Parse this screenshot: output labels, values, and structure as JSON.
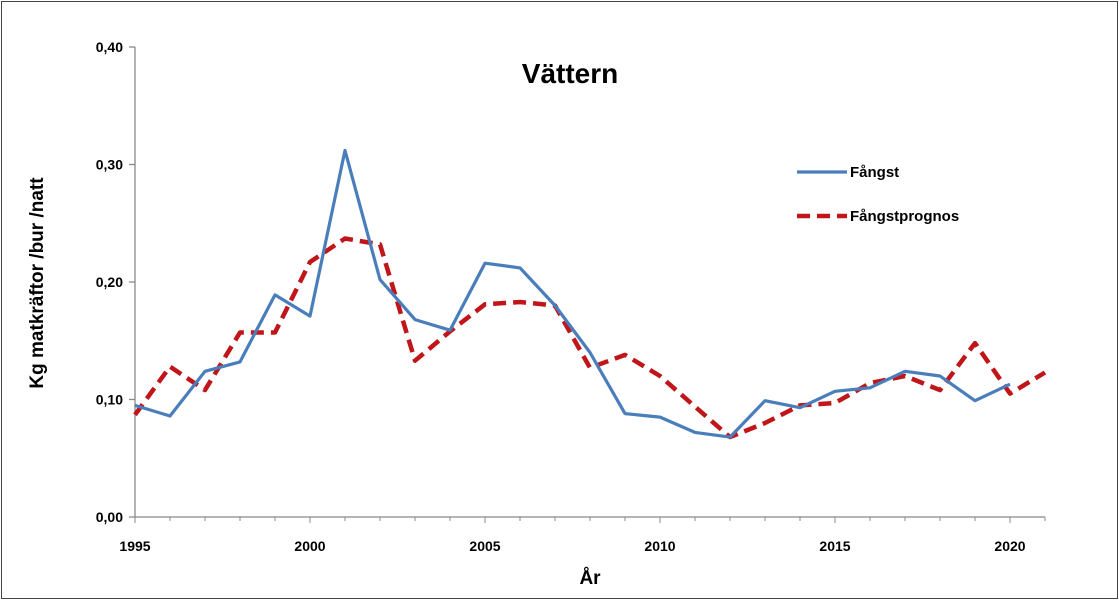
{
  "chart_data": {
    "type": "line",
    "title": "Vättern",
    "xlabel": "År",
    "ylabel": "Kg matkräftor /bur /natt",
    "xlim": [
      1995,
      2021
    ],
    "ylim": [
      0,
      0.4
    ],
    "x_ticks": [
      1995,
      2000,
      2005,
      2010,
      2015,
      2020
    ],
    "x_tick_labels": [
      "1995",
      "2000",
      "2005",
      "2010",
      "2015",
      "2020"
    ],
    "y_ticks": [
      0,
      0.1,
      0.2,
      0.3,
      0.4
    ],
    "y_tick_labels": [
      "0,00",
      "0,10",
      "0,20",
      "0,30",
      "0,40"
    ],
    "grid": false,
    "legend_position": "top-right",
    "series": [
      {
        "name": "Fångst",
        "color": "#4a7ebb",
        "style": "solid",
        "x": [
          1995,
          1996,
          1997,
          1998,
          1999,
          2000,
          2001,
          2002,
          2003,
          2004,
          2005,
          2006,
          2007,
          2008,
          2009,
          2010,
          2011,
          2012,
          2013,
          2014,
          2015,
          2016,
          2017,
          2018,
          2019,
          2020
        ],
        "values": [
          0.095,
          0.086,
          0.124,
          0.132,
          0.189,
          0.171,
          0.312,
          0.202,
          0.168,
          0.159,
          0.216,
          0.212,
          0.18,
          0.14,
          0.088,
          0.085,
          0.072,
          0.068,
          0.099,
          0.093,
          0.107,
          0.11,
          0.124,
          0.12,
          0.099,
          0.113
        ]
      },
      {
        "name": "Fångstprognos",
        "color": "#c0161a",
        "style": "dashed",
        "x": [
          1995,
          1996,
          1997,
          1998,
          1999,
          2000,
          2001,
          2002,
          2003,
          2004,
          2005,
          2006,
          2007,
          2008,
          2009,
          2010,
          2011,
          2012,
          2013,
          2014,
          2015,
          2016,
          2017,
          2018,
          2019,
          2020,
          2021
        ],
        "values": [
          0.087,
          0.128,
          0.108,
          0.157,
          0.157,
          0.217,
          0.237,
          0.232,
          0.133,
          0.158,
          0.181,
          0.183,
          0.18,
          0.127,
          0.138,
          0.12,
          0.094,
          0.068,
          0.08,
          0.095,
          0.097,
          0.114,
          0.12,
          0.108,
          0.148,
          0.105,
          0.123
        ]
      }
    ]
  }
}
